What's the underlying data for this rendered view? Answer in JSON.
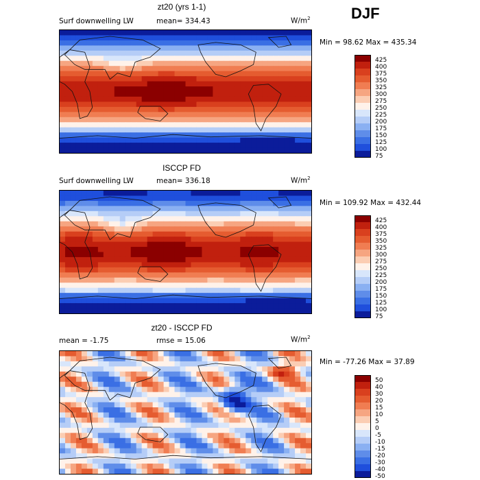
{
  "season": "DJF",
  "units_label": "W/m",
  "units_sup": "2",
  "chart_data": [
    {
      "type": "heatmap",
      "title": "zt20 (yrs 1-1)",
      "subtitle": "Surf downwelling LW",
      "mean_text": "mean= 334.43",
      "rmse_text": "",
      "minmax_text": "Min =   98.62 Max = 435.34",
      "min": 98.62,
      "max": 435.34,
      "mean": 334.43,
      "levels": [
        "425",
        "400",
        "375",
        "350",
        "325",
        "300",
        "275",
        "250",
        "225",
        "200",
        "175",
        "150",
        "125",
        "100",
        "75"
      ],
      "colors": [
        "#8b0000",
        "#c1200e",
        "#d9401e",
        "#e55c30",
        "#f07d52",
        "#f6a581",
        "#fbcdb3",
        "#fff2ea",
        "#d8e6fb",
        "#b5cdf7",
        "#8ab0f2",
        "#5f8de9",
        "#3a6fe4",
        "#1f4fdc",
        "#0b1c9a"
      ]
    },
    {
      "type": "heatmap",
      "title": "ISCCP FD",
      "subtitle": "Surf downwelling LW",
      "mean_text": "mean= 336.18",
      "rmse_text": "",
      "minmax_text": "Min = 109.92 Max = 432.44",
      "min": 109.92,
      "max": 432.44,
      "mean": 336.18,
      "levels": [
        "425",
        "400",
        "375",
        "350",
        "325",
        "300",
        "275",
        "250",
        "225",
        "200",
        "175",
        "150",
        "125",
        "100",
        "75"
      ],
      "colors": [
        "#8b0000",
        "#c1200e",
        "#d9401e",
        "#e55c30",
        "#f07d52",
        "#f6a581",
        "#fbcdb3",
        "#fff2ea",
        "#d8e6fb",
        "#b5cdf7",
        "#8ab0f2",
        "#5f8de9",
        "#3a6fe4",
        "#1f4fdc",
        "#0b1c9a"
      ]
    },
    {
      "type": "heatmap",
      "title": "zt20 - ISCCP FD",
      "subtitle": "",
      "mean_text": "mean =   -1.75",
      "rmse_text": "rmse =   15.06",
      "minmax_text": "Min = -77.26 Max =   37.89",
      "min": -77.26,
      "max": 37.89,
      "mean": -1.75,
      "rmse": 15.06,
      "levels": [
        "50",
        "40",
        "30",
        "20",
        "15",
        "10",
        "5",
        "0",
        "-5",
        "-10",
        "-15",
        "-20",
        "-30",
        "-40",
        "-50"
      ],
      "colors": [
        "#8b0000",
        "#c1200e",
        "#d9401e",
        "#e55c30",
        "#f07d52",
        "#f6a581",
        "#fbcdb3",
        "#fff2ea",
        "#d8e6fb",
        "#b5cdf7",
        "#8ab0f2",
        "#5f8de9",
        "#3a6fe4",
        "#1f4fdc",
        "#0b1c9a"
      ]
    }
  ]
}
